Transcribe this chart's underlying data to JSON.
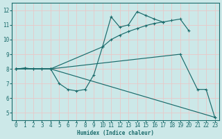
{
  "xlabel": "Humidex (Indice chaleur)",
  "xlim": [
    -0.5,
    23.5
  ],
  "ylim": [
    4.5,
    12.5
  ],
  "yticks": [
    5,
    6,
    7,
    8,
    9,
    10,
    11,
    12
  ],
  "xticks": [
    0,
    1,
    2,
    3,
    4,
    5,
    6,
    7,
    8,
    9,
    10,
    11,
    12,
    13,
    14,
    15,
    16,
    17,
    18,
    19,
    20,
    21,
    22,
    23
  ],
  "bg_color": "#cce8e8",
  "grid_color": "#e8c8c8",
  "line_color": "#1a6b6b",
  "line1_x": [
    0,
    1,
    2,
    3,
    4,
    5,
    6,
    7,
    8,
    9,
    10,
    11,
    12,
    13,
    14,
    15,
    16,
    17
  ],
  "line1_y": [
    8.0,
    8.05,
    8.0,
    8.0,
    8.0,
    7.0,
    6.6,
    6.5,
    6.6,
    7.6,
    9.5,
    11.55,
    10.85,
    11.0,
    11.9,
    11.65,
    11.4,
    11.2
  ],
  "line2_x": [
    0,
    1,
    2,
    3,
    4,
    10,
    11,
    12,
    13,
    14,
    15,
    16,
    17,
    18,
    19,
    20
  ],
  "line2_y": [
    8.0,
    8.05,
    8.0,
    8.0,
    8.0,
    9.5,
    10.0,
    10.3,
    10.55,
    10.75,
    10.95,
    11.1,
    11.2,
    11.3,
    11.4,
    10.6
  ],
  "line3_x": [
    0,
    4,
    23
  ],
  "line3_y": [
    8.0,
    8.0,
    4.7
  ],
  "line4_x": [
    0,
    4,
    19,
    21,
    22,
    23
  ],
  "line4_y": [
    8.0,
    8.0,
    9.0,
    6.6,
    6.6,
    4.7
  ]
}
